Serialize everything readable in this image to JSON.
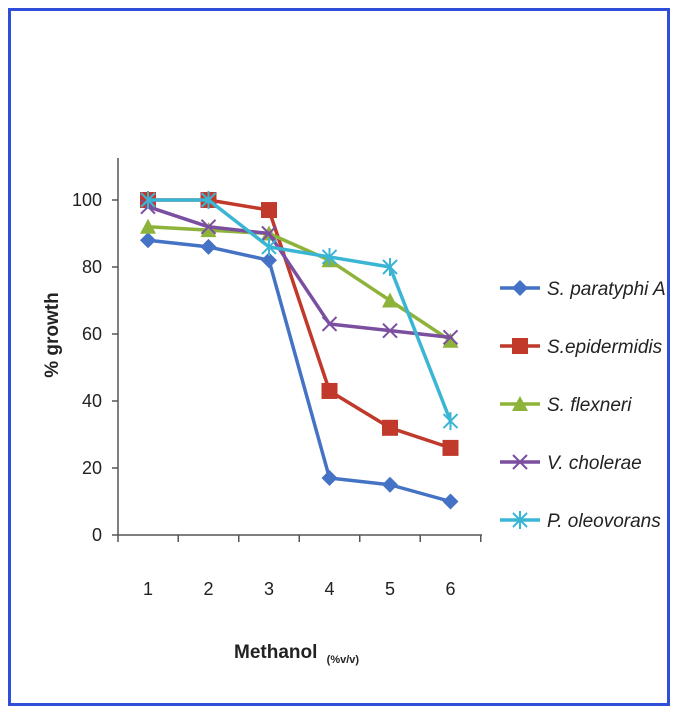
{
  "chart_data": {
    "type": "line",
    "title": "",
    "xlabel": "Methanol",
    "xlabel_unit": "(%v/v)",
    "ylabel": "% growth",
    "ylim": [
      0,
      110
    ],
    "yticks": [
      0,
      20,
      40,
      60,
      80,
      100
    ],
    "categories": [
      "1",
      "2",
      "3",
      "4",
      "5",
      "6"
    ],
    "legend_position": "right",
    "grid": false,
    "series": [
      {
        "name": "S. paratyphi A",
        "color": "#4472c4",
        "marker": "diamond",
        "values": [
          88,
          86,
          82,
          17,
          15,
          10
        ]
      },
      {
        "name": "S.epidermidis",
        "color": "#c0392b",
        "marker": "square",
        "values": [
          100,
          100,
          97,
          43,
          32,
          26
        ]
      },
      {
        "name": "S. flexneri",
        "color": "#8db33a",
        "marker": "triangle",
        "values": [
          92,
          91,
          90,
          82,
          70,
          58
        ]
      },
      {
        "name": "V. cholerae",
        "color": "#7b4fa0",
        "marker": "x",
        "values": [
          98,
          92,
          90,
          63,
          61,
          59
        ]
      },
      {
        "name": "P. oleovorans",
        "color": "#3bb5d4",
        "marker": "star",
        "values": [
          100,
          100,
          86,
          83,
          80,
          34
        ]
      }
    ]
  }
}
